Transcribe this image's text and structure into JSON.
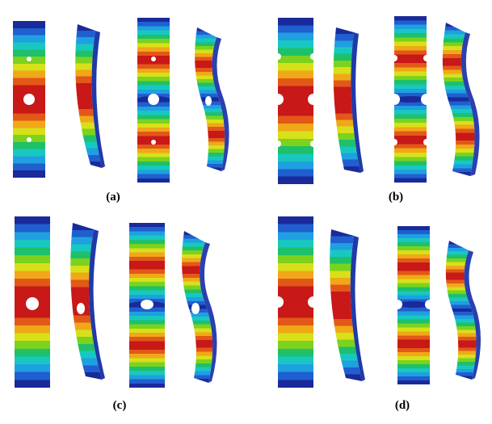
{
  "panels": [
    {
      "label": "(a)",
      "modes": [
        {
          "mode": "first",
          "hole_size": "small",
          "side_holes": true,
          "edge_notches": false
        },
        {
          "mode": "second",
          "hole_size": "small",
          "side_holes": true,
          "edge_notches": false
        }
      ]
    },
    {
      "label": "(b)",
      "modes": [
        {
          "mode": "first",
          "hole_size": "small",
          "side_holes": true,
          "edge_notches": true
        },
        {
          "mode": "second",
          "hole_size": "small",
          "side_holes": true,
          "edge_notches": true
        }
      ]
    },
    {
      "label": "(c)",
      "modes": [
        {
          "mode": "first",
          "hole_size": "large",
          "side_holes": false,
          "edge_notches": false
        },
        {
          "mode": "second",
          "hole_size": "large",
          "side_holes": false,
          "edge_notches": false
        }
      ]
    },
    {
      "label": "(d)",
      "modes": [
        {
          "mode": "first",
          "hole_size": "large",
          "side_holes": false,
          "edge_notches": true
        },
        {
          "mode": "second",
          "hole_size": "large",
          "side_holes": false,
          "edge_notches": true
        }
      ]
    }
  ],
  "colormap": [
    "#1a2a9a",
    "#1f5fd0",
    "#1fa0e0",
    "#18c8c0",
    "#1ec06a",
    "#7cd21e",
    "#d8e01a",
    "#f0a818",
    "#e25818",
    "#c81818"
  ],
  "hole_color": "#ffffff",
  "background": "#ffffff"
}
